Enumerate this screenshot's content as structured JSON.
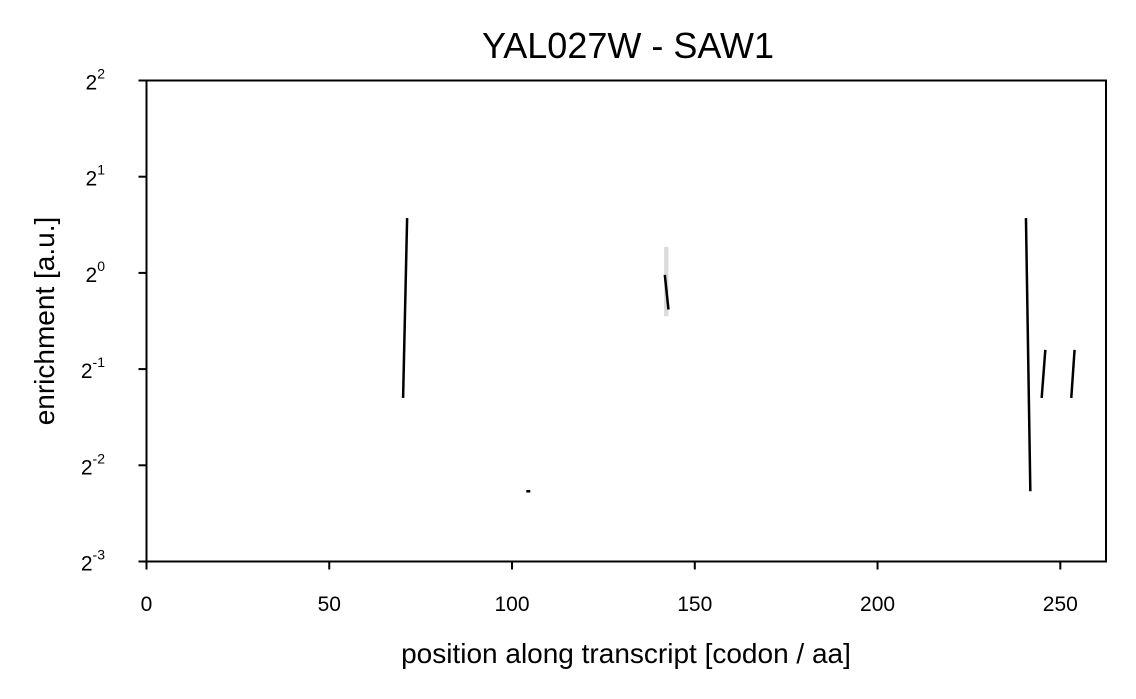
{
  "chart_data": {
    "type": "line",
    "title": "YAL027W - SAW1",
    "xlabel": "position along transcript [codon / aa]",
    "ylabel": "enrichment [a.u.]",
    "xlim": [
      0,
      262.5
    ],
    "ylim_log2": [
      -3,
      2
    ],
    "y_scale": "log2",
    "grid": false,
    "x_ticks": [
      0,
      50,
      100,
      150,
      200,
      250
    ],
    "y_ticks": [
      {
        "base": "2",
        "exp": "-3",
        "value_log2": -3
      },
      {
        "base": "2",
        "exp": "-2",
        "value_log2": -2
      },
      {
        "base": "2",
        "exp": "-1",
        "value_log2": -1
      },
      {
        "base": "2",
        "exp": "0",
        "value_log2": 0
      },
      {
        "base": "2",
        "exp": "1",
        "value_log2": 1
      },
      {
        "base": "2",
        "exp": "2",
        "value_log2": 2
      }
    ],
    "series": [
      {
        "segments": [
          [
            [
              70.2,
              -1.3
            ],
            [
              71.3,
              0.57
            ]
          ],
          [
            [
              103.9,
              -2.27
            ],
            [
              105.0,
              -2.27
            ]
          ],
          [
            [
              141.8,
              -0.02
            ],
            [
              142.8,
              -0.38
            ]
          ],
          [
            [
              240.6,
              0.57
            ],
            [
              241.8,
              -2.27
            ]
          ],
          [
            [
              244.9,
              -1.3
            ],
            [
              245.9,
              -0.8
            ]
          ],
          [
            [
              253.0,
              -1.3
            ],
            [
              253.9,
              -0.8
            ]
          ]
        ],
        "band": {
          "x": [
            141.6,
            142.8
          ],
          "log2_low": -0.45,
          "log2_high": 0.27
        }
      }
    ],
    "colors": {
      "line": "#000000",
      "band": "#cccccc"
    }
  }
}
